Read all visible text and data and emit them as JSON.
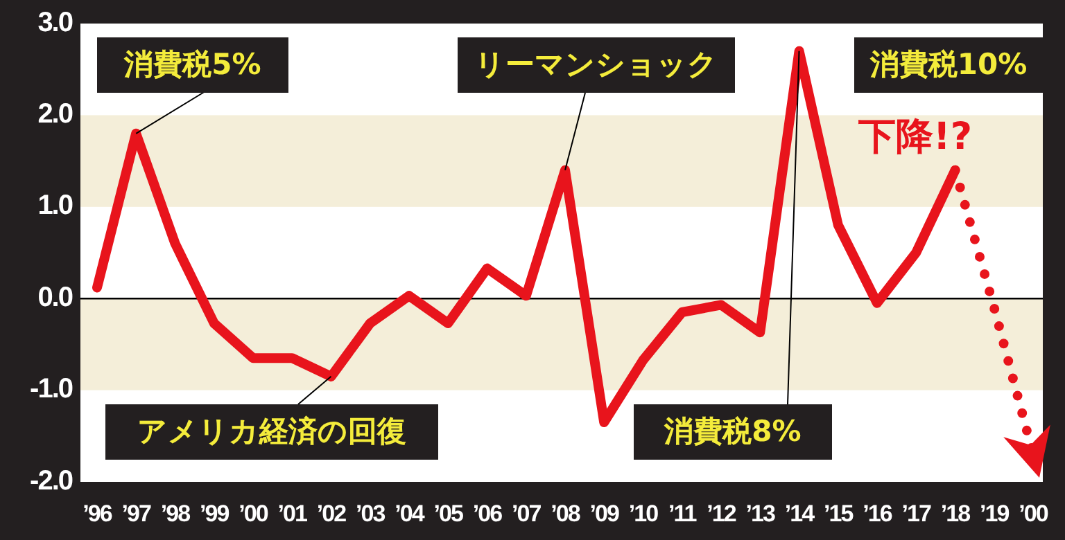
{
  "chart_data": {
    "type": "line",
    "categories": [
      "’96",
      "’97",
      "’98",
      "’99",
      "’00",
      "’01",
      "’02",
      "’03",
      "’04",
      "’05",
      "’06",
      "’07",
      "’08",
      "’09",
      "’10",
      "’11",
      "’12",
      "’13",
      "’14",
      "’15",
      "’16",
      "’17",
      "’18",
      "’19",
      "’00"
    ],
    "series": [
      {
        "color": "#e8141c",
        "line_style": "solid",
        "values": [
          0.12,
          1.8,
          0.6,
          -0.27,
          -0.65,
          -0.65,
          -0.85,
          -0.27,
          0.03,
          -0.27,
          0.33,
          0.03,
          1.4,
          -1.35,
          -0.67,
          -0.15,
          -0.07,
          -0.37,
          2.7,
          0.8,
          -0.05,
          0.5,
          1.4,
          null,
          null
        ]
      },
      {
        "color": "#e8141c",
        "line_style": "dotted",
        "values": [
          null,
          null,
          null,
          null,
          null,
          null,
          null,
          null,
          null,
          null,
          null,
          null,
          null,
          null,
          null,
          null,
          null,
          null,
          null,
          null,
          null,
          null,
          1.4,
          -0.1,
          -1.7
        ]
      }
    ],
    "ylim": [
      -2,
      3
    ],
    "yticks": [
      {
        "value": -2,
        "label": "-2.0"
      },
      {
        "value": -1,
        "label": "-1.0"
      },
      {
        "value": 0,
        "label": "0.0"
      },
      {
        "value": 1,
        "label": "1.0"
      },
      {
        "value": 2,
        "label": "2.0"
      },
      {
        "value": 3,
        "label": "3.0"
      }
    ],
    "bands": [
      {
        "axis": "y",
        "from": 1,
        "to": 2,
        "color": "#f4eed9"
      },
      {
        "axis": "y",
        "from": -1,
        "to": 0,
        "color": "#f4eed9"
      }
    ],
    "ref_lines": [
      {
        "axis": "y",
        "value": 0,
        "color": "#000000"
      }
    ],
    "annotations": [
      {
        "text": "消費税5%",
        "x": "’97",
        "y": 1.8
      },
      {
        "text": "リーマンショック",
        "x": "’08",
        "y": 1.4
      },
      "消費税10%",
      "下降!?",
      {
        "text": "アメリカ経済の回復",
        "x": "’02",
        "y": -0.85
      },
      {
        "text": "消費税8%",
        "x": "’14",
        "y": 2.7
      }
    ]
  }
}
